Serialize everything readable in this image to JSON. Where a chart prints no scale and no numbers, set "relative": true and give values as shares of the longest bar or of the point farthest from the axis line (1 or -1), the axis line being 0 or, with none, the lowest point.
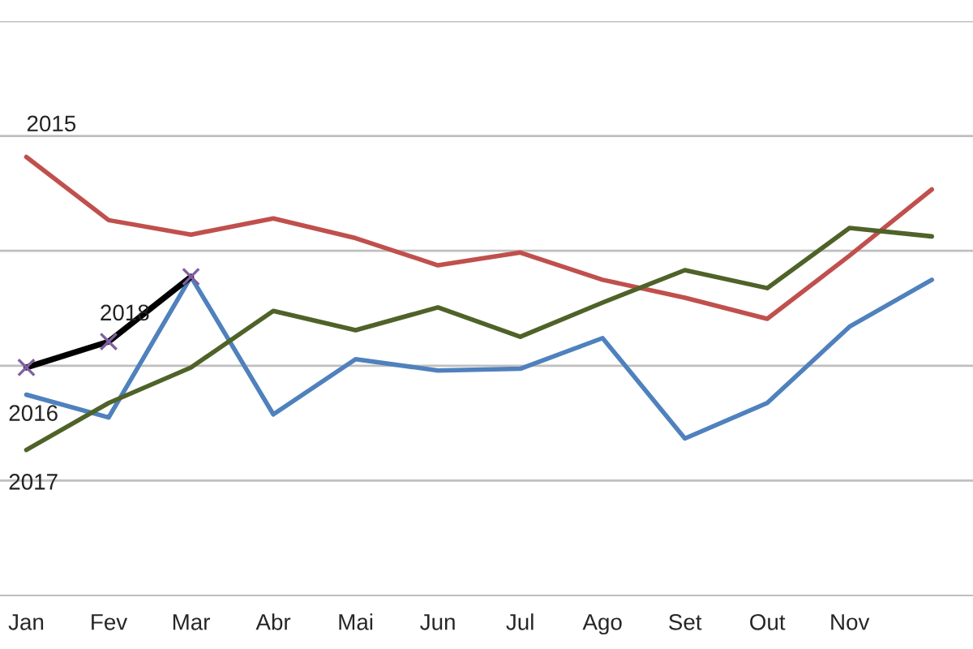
{
  "chart_data": {
    "type": "line",
    "relative": true,
    "grid": "y",
    "legend": false,
    "categories": [
      "Jan",
      "Fev",
      "Mar",
      "Abr",
      "Mai",
      "Jun",
      "Jul",
      "Ago",
      "Set",
      "Out",
      "Nov",
      null
    ],
    "series": [
      {
        "name": "2015",
        "color": "#c0504d",
        "values": [
          1.0,
          0.856,
          0.823,
          0.86,
          0.815,
          0.753,
          0.782,
          0.72,
          0.679,
          0.631,
          0.775,
          0.926
        ]
      },
      {
        "name": "2016",
        "color": "#4f81bd",
        "values": [
          0.458,
          0.406,
          0.727,
          0.413,
          0.539,
          0.513,
          0.517,
          0.587,
          0.358,
          0.439,
          0.613,
          0.72
        ]
      },
      {
        "name": "2017",
        "color": "#4f6228",
        "values": [
          0.332,
          0.439,
          0.52,
          0.649,
          0.605,
          0.657,
          0.59,
          0.668,
          0.742,
          0.701,
          0.838,
          0.819
        ]
      },
      {
        "name": "2018",
        "color": "#000000",
        "marker": "cross",
        "values": [
          0.52,
          0.579,
          0.727,
          null,
          null,
          null,
          null,
          null,
          null,
          null,
          null,
          null
        ]
      }
    ]
  }
}
